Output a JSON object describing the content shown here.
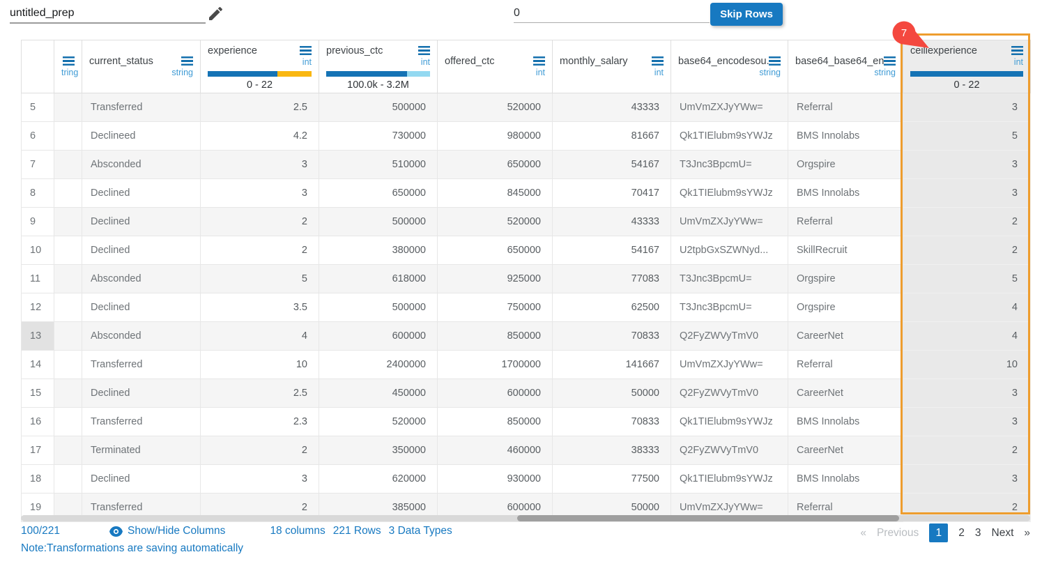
{
  "toolbar": {
    "dataset_name": "untitled_prep",
    "skip_rows_value": "0",
    "skip_rows_label": "Skip Rows"
  },
  "table": {
    "columns": [
      {
        "name": "",
        "type": ""
      },
      {
        "name": "",
        "type": "tring"
      },
      {
        "name": "current_status",
        "type": "string"
      },
      {
        "name": "experience",
        "type": "int",
        "range": "0 - 22",
        "bar": [
          {
            "color": "#1573b5",
            "pct": 67
          },
          {
            "color": "#f9b712",
            "pct": 33
          }
        ]
      },
      {
        "name": "previous_ctc",
        "type": "int",
        "range": "100.0k - 3.2M",
        "bar": [
          {
            "color": "#1573b5",
            "pct": 78
          },
          {
            "color": "#93d9f1",
            "pct": 22
          }
        ]
      },
      {
        "name": "offered_ctc",
        "type": "int"
      },
      {
        "name": "monthly_salary",
        "type": "int"
      },
      {
        "name": "base64_encodesou...",
        "type": "string"
      },
      {
        "name": "base64_base64_en...",
        "type": "string"
      },
      {
        "name": "ceiliexperience",
        "type": "int",
        "range": "0 - 22",
        "bar": [
          {
            "color": "#1573b5",
            "pct": 100
          }
        ],
        "badge": "7",
        "highlighted": true
      }
    ],
    "rows": [
      {
        "num": "5",
        "partial": "",
        "current_status": "Transferred",
        "experience": "2.5",
        "previous_ctc": "500000",
        "offered_ctc": "520000",
        "monthly_salary": "43333",
        "base64_encoded": "UmVmZXJyYWw=",
        "source": "Referral",
        "ceiliexperience": "3"
      },
      {
        "num": "6",
        "partial": "",
        "current_status": "Declineed",
        "experience": "4.2",
        "previous_ctc": "730000",
        "offered_ctc": "980000",
        "monthly_salary": "81667",
        "base64_encoded": "Qk1TIElubm9sYWJz",
        "source": "BMS Innolabs",
        "ceiliexperience": "5"
      },
      {
        "num": "7",
        "partial": "",
        "current_status": "Absconded",
        "experience": "3",
        "previous_ctc": "510000",
        "offered_ctc": "650000",
        "monthly_salary": "54167",
        "base64_encoded": "T3Jnc3BpcmU=",
        "source": "Orgspire",
        "ceiliexperience": "3"
      },
      {
        "num": "8",
        "partial": "",
        "current_status": "Declined",
        "experience": "3",
        "previous_ctc": "650000",
        "offered_ctc": "845000",
        "monthly_salary": "70417",
        "base64_encoded": "Qk1TIElubm9sYWJz",
        "source": "BMS Innolabs",
        "ceiliexperience": "3"
      },
      {
        "num": "9",
        "partial": "",
        "current_status": "Declined",
        "experience": "2",
        "previous_ctc": "500000",
        "offered_ctc": "520000",
        "monthly_salary": "43333",
        "base64_encoded": "UmVmZXJyYWw=",
        "source": "Referral",
        "ceiliexperience": "2"
      },
      {
        "num": "10",
        "partial": "",
        "current_status": "Declined",
        "experience": "2",
        "previous_ctc": "380000",
        "offered_ctc": "650000",
        "monthly_salary": "54167",
        "base64_encoded": "U2tpbGxSZWNyd...",
        "source": "SkillRecruit",
        "ceiliexperience": "2"
      },
      {
        "num": "11",
        "partial": "",
        "current_status": "Absconded",
        "experience": "5",
        "previous_ctc": "618000",
        "offered_ctc": "925000",
        "monthly_salary": "77083",
        "base64_encoded": "T3Jnc3BpcmU=",
        "source": "Orgspire",
        "ceiliexperience": "5"
      },
      {
        "num": "12",
        "partial": "",
        "current_status": "Declined",
        "experience": "3.5",
        "previous_ctc": "500000",
        "offered_ctc": "750000",
        "monthly_salary": "62500",
        "base64_encoded": "T3Jnc3BpcmU=",
        "source": "Orgspire",
        "ceiliexperience": "4"
      },
      {
        "num": "13",
        "partial": "",
        "current_status": "Absconded",
        "experience": "4",
        "previous_ctc": "600000",
        "offered_ctc": "850000",
        "monthly_salary": "70833",
        "base64_encoded": "Q2FyZWVyTmV0",
        "source": "CareerNet",
        "ceiliexperience": "4",
        "num_highlighted": true
      },
      {
        "num": "14",
        "partial": "",
        "current_status": "Transferred",
        "experience": "10",
        "previous_ctc": "2400000",
        "offered_ctc": "1700000",
        "monthly_salary": "141667",
        "base64_encoded": "UmVmZXJyYWw=",
        "source": "Referral",
        "ceiliexperience": "10"
      },
      {
        "num": "15",
        "partial": "",
        "current_status": "Declined",
        "experience": "2.5",
        "previous_ctc": "450000",
        "offered_ctc": "600000",
        "monthly_salary": "50000",
        "base64_encoded": "Q2FyZWVyTmV0",
        "source": "CareerNet",
        "ceiliexperience": "3"
      },
      {
        "num": "16",
        "partial": "",
        "current_status": "Transferred",
        "experience": "2.3",
        "previous_ctc": "520000",
        "offered_ctc": "850000",
        "monthly_salary": "70833",
        "base64_encoded": "Qk1TIElubm9sYWJz",
        "source": "BMS Innolabs",
        "ceiliexperience": "3"
      },
      {
        "num": "17",
        "partial": "",
        "current_status": "Terminated",
        "experience": "2",
        "previous_ctc": "350000",
        "offered_ctc": "460000",
        "monthly_salary": "38333",
        "base64_encoded": "Q2FyZWVyTmV0",
        "source": "CareerNet",
        "ceiliexperience": "2"
      },
      {
        "num": "18",
        "partial": "",
        "current_status": "Declined",
        "experience": "3",
        "previous_ctc": "620000",
        "offered_ctc": "930000",
        "monthly_salary": "77500",
        "base64_encoded": "Qk1TIElubm9sYWJz",
        "source": "BMS Innolabs",
        "ceiliexperience": "3"
      },
      {
        "num": "19",
        "partial": "",
        "current_status": "Transferred",
        "experience": "2",
        "previous_ctc": "385000",
        "offered_ctc": "600000",
        "monthly_salary": "50000",
        "base64_encoded": "UmVmZXJyYWw=",
        "source": "Referral",
        "ceiliexperience": "2"
      }
    ]
  },
  "footer": {
    "rows_shown": "100/221",
    "show_hide_label": "Show/Hide Columns",
    "columns_count": "18 columns",
    "rows_count": "221 Rows",
    "data_types_count": "3 Data Types",
    "note": "Note:Transformations are saving automatically",
    "pagination": {
      "prev_arrow": "«",
      "previous": "Previous",
      "pages": [
        "1",
        "2",
        "3"
      ],
      "active_page": "1",
      "next": "Next",
      "next_arrow": "»"
    }
  },
  "colors": {
    "accent_blue": "#1779c1",
    "bar_blue": "#1573b5",
    "bar_yellow": "#f9b712",
    "bar_light_blue": "#93d9f1",
    "highlight_orange": "#ee9d2e",
    "badge_red": "#f4483f"
  }
}
